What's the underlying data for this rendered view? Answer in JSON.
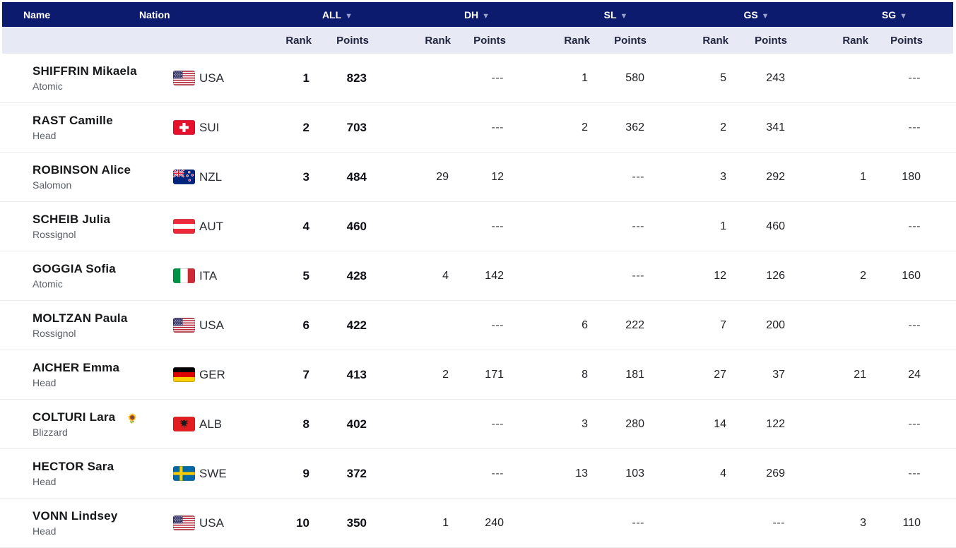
{
  "table": {
    "columns": {
      "name": {
        "label": "Name"
      },
      "nation": {
        "label": "Nation"
      },
      "all": {
        "label": "ALL",
        "sortable": true
      },
      "dh": {
        "label": "DH",
        "sortable": true
      },
      "sl": {
        "label": "SL",
        "sortable": true
      },
      "gs": {
        "label": "GS",
        "sortable": true
      },
      "sg": {
        "label": "SG",
        "sortable": true
      }
    },
    "subheaders": {
      "rank": "Rank",
      "points": "Points"
    },
    "empty_value": "---",
    "rows": [
      {
        "name": "SHIFFRIN Mikaela",
        "brand": "Atomic",
        "nation": "USA",
        "all": {
          "rank": "1",
          "points": "823"
        },
        "dh": {
          "rank": "",
          "points": "---"
        },
        "sl": {
          "rank": "1",
          "points": "580"
        },
        "gs": {
          "rank": "5",
          "points": "243"
        },
        "sg": {
          "rank": "",
          "points": "---"
        }
      },
      {
        "name": "RAST Camille",
        "brand": "Head",
        "nation": "SUI",
        "all": {
          "rank": "2",
          "points": "703"
        },
        "dh": {
          "rank": "",
          "points": "---"
        },
        "sl": {
          "rank": "2",
          "points": "362"
        },
        "gs": {
          "rank": "2",
          "points": "341"
        },
        "sg": {
          "rank": "",
          "points": "---"
        }
      },
      {
        "name": "ROBINSON Alice",
        "brand": "Salomon",
        "nation": "NZL",
        "all": {
          "rank": "3",
          "points": "484"
        },
        "dh": {
          "rank": "29",
          "points": "12"
        },
        "sl": {
          "rank": "",
          "points": "---"
        },
        "gs": {
          "rank": "3",
          "points": "292"
        },
        "sg": {
          "rank": "1",
          "points": "180"
        }
      },
      {
        "name": "SCHEIB Julia",
        "brand": "Rossignol",
        "nation": "AUT",
        "all": {
          "rank": "4",
          "points": "460"
        },
        "dh": {
          "rank": "",
          "points": "---"
        },
        "sl": {
          "rank": "",
          "points": "---"
        },
        "gs": {
          "rank": "1",
          "points": "460"
        },
        "sg": {
          "rank": "",
          "points": "---"
        }
      },
      {
        "name": "GOGGIA Sofia",
        "brand": "Atomic",
        "nation": "ITA",
        "all": {
          "rank": "5",
          "points": "428"
        },
        "dh": {
          "rank": "4",
          "points": "142"
        },
        "sl": {
          "rank": "",
          "points": "---"
        },
        "gs": {
          "rank": "12",
          "points": "126"
        },
        "sg": {
          "rank": "2",
          "points": "160"
        }
      },
      {
        "name": "MOLTZAN Paula",
        "brand": "Rossignol",
        "nation": "USA",
        "all": {
          "rank": "6",
          "points": "422"
        },
        "dh": {
          "rank": "",
          "points": "---"
        },
        "sl": {
          "rank": "6",
          "points": "222"
        },
        "gs": {
          "rank": "7",
          "points": "200"
        },
        "sg": {
          "rank": "",
          "points": "---"
        }
      },
      {
        "name": "AICHER Emma",
        "brand": "Head",
        "nation": "GER",
        "all": {
          "rank": "7",
          "points": "413"
        },
        "dh": {
          "rank": "2",
          "points": "171"
        },
        "sl": {
          "rank": "8",
          "points": "181"
        },
        "gs": {
          "rank": "27",
          "points": "37"
        },
        "sg": {
          "rank": "21",
          "points": "24"
        }
      },
      {
        "name": "COLTURI Lara",
        "brand": "Blizzard",
        "nation": "ALB",
        "badge": "sunflower",
        "all": {
          "rank": "8",
          "points": "402"
        },
        "dh": {
          "rank": "",
          "points": "---"
        },
        "sl": {
          "rank": "3",
          "points": "280"
        },
        "gs": {
          "rank": "14",
          "points": "122"
        },
        "sg": {
          "rank": "",
          "points": "---"
        }
      },
      {
        "name": "HECTOR Sara",
        "brand": "Head",
        "nation": "SWE",
        "all": {
          "rank": "9",
          "points": "372"
        },
        "dh": {
          "rank": "",
          "points": "---"
        },
        "sl": {
          "rank": "13",
          "points": "103"
        },
        "gs": {
          "rank": "4",
          "points": "269"
        },
        "sg": {
          "rank": "",
          "points": "---"
        }
      },
      {
        "name": "VONN Lindsey",
        "brand": "Head",
        "nation": "USA",
        "all": {
          "rank": "10",
          "points": "350"
        },
        "dh": {
          "rank": "1",
          "points": "240"
        },
        "sl": {
          "rank": "",
          "points": "---"
        },
        "gs": {
          "rank": "",
          "points": "---"
        },
        "sg": {
          "rank": "3",
          "points": "110"
        }
      }
    ]
  },
  "icons": {
    "sort_arrow": "▼",
    "sunflower_badge": "🌻"
  },
  "colors": {
    "header_bg": "#0d1b6e",
    "header_text": "#ffffff",
    "subheader_bg": "#e7e9f4",
    "row_divider": "#ebebeb",
    "sort_arrow": "#99a2c9"
  }
}
